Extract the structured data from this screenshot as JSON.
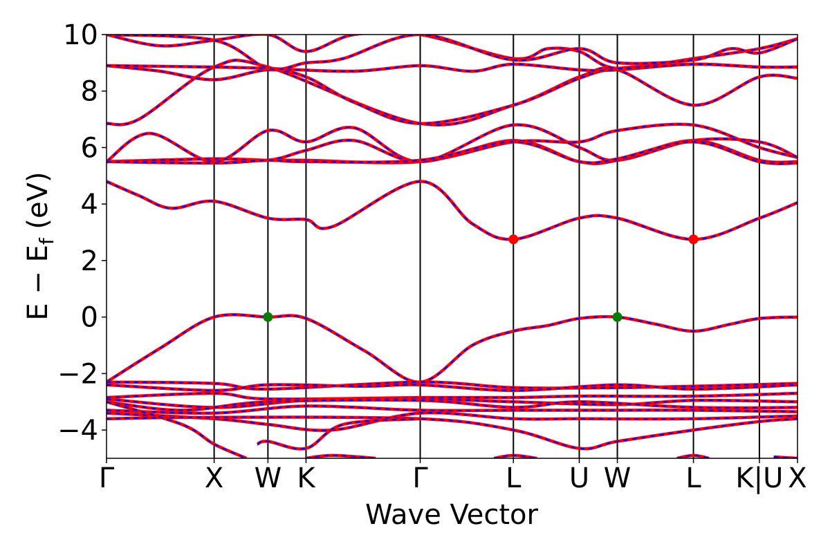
{
  "chart_data": {
    "type": "line",
    "title": "",
    "xlabel": "Wave Vector",
    "ylabel_main": "E − E",
    "ylabel_sub": "f",
    "ylabel_unit": " (eV)",
    "ylim": [
      -5,
      10
    ],
    "y_ticks": [
      {
        "value": 10,
        "label": "10"
      },
      {
        "value": 8,
        "label": "8"
      },
      {
        "value": 6,
        "label": "6"
      },
      {
        "value": 4,
        "label": "4"
      },
      {
        "value": 2,
        "label": "2"
      },
      {
        "value": 0,
        "label": "0"
      },
      {
        "value": -2,
        "label": "−2"
      },
      {
        "value": -4,
        "label": "−4"
      }
    ],
    "kpoints": [
      {
        "label": "Γ",
        "x": 0.0
      },
      {
        "label": "X",
        "x": 1.0
      },
      {
        "label": "W",
        "x": 1.5
      },
      {
        "label": "K",
        "x": 1.854
      },
      {
        "label": "Γ",
        "x": 2.915
      },
      {
        "label": "L",
        "x": 3.781
      },
      {
        "label": "U",
        "x": 4.393
      },
      {
        "label": "W",
        "x": 4.747
      },
      {
        "label": "L",
        "x": 5.454
      },
      {
        "label": "K|U",
        "x": 6.067
      },
      {
        "label": "X",
        "x": 6.421
      }
    ],
    "xlim": [
      0,
      6.421
    ],
    "colors": {
      "band_red": "#ff0000",
      "band_blue": "#0000ff",
      "vbm": "#007f00",
      "cbm": "#ff0000",
      "kline": "#000000"
    },
    "band_style": "red solid overlaid with blue dashed (spin up / spin down)",
    "markers": {
      "vbm": [
        {
          "x": 1.5,
          "y": 0.0
        },
        {
          "x": 4.747,
          "y": 0.0
        }
      ],
      "cbm": [
        {
          "x": 3.781,
          "y": 2.75
        },
        {
          "x": 5.454,
          "y": 2.75
        }
      ]
    },
    "series": [
      {
        "points": [
          [
            0.0,
            -2.3
          ],
          [
            0.5,
            -1.1
          ],
          [
            1.0,
            0.0
          ],
          [
            1.5,
            0.0
          ],
          [
            1.854,
            -0.05
          ],
          [
            2.4,
            -1.2
          ],
          [
            2.915,
            -2.3
          ],
          [
            3.4,
            -1.0
          ],
          [
            3.781,
            -0.5
          ],
          [
            4.1,
            -0.3
          ],
          [
            4.393,
            -0.05
          ],
          [
            4.747,
            0.0
          ],
          [
            5.1,
            -0.25
          ],
          [
            5.454,
            -0.5
          ],
          [
            5.8,
            -0.25
          ],
          [
            6.067,
            -0.05
          ],
          [
            6.421,
            0.0
          ]
        ]
      },
      {
        "points": [
          [
            0.0,
            4.8
          ],
          [
            0.3,
            4.3
          ],
          [
            0.6,
            3.85
          ],
          [
            1.0,
            4.1
          ],
          [
            1.5,
            3.5
          ],
          [
            1.854,
            3.45
          ],
          [
            2.1,
            3.2
          ],
          [
            2.915,
            4.8
          ],
          [
            3.4,
            3.3
          ],
          [
            3.781,
            2.75
          ],
          [
            4.393,
            3.5
          ],
          [
            4.747,
            3.5
          ],
          [
            5.454,
            2.75
          ],
          [
            6.067,
            3.5
          ],
          [
            6.421,
            4.05
          ]
        ]
      },
      {
        "points": [
          [
            0.0,
            5.5
          ],
          [
            1.0,
            5.6
          ],
          [
            1.5,
            5.55
          ],
          [
            1.854,
            5.55
          ],
          [
            2.915,
            5.5
          ],
          [
            3.781,
            6.2
          ],
          [
            4.393,
            6.2
          ],
          [
            4.747,
            6.6
          ],
          [
            5.454,
            6.8
          ],
          [
            6.067,
            6.0
          ],
          [
            6.421,
            5.65
          ]
        ]
      },
      {
        "points": [
          [
            0.0,
            5.5
          ],
          [
            0.4,
            6.5
          ],
          [
            1.0,
            5.5
          ],
          [
            1.5,
            6.6
          ],
          [
            1.854,
            6.2
          ],
          [
            2.3,
            6.7
          ],
          [
            2.915,
            5.5
          ],
          [
            3.781,
            6.8
          ],
          [
            4.393,
            6.0
          ],
          [
            4.747,
            5.55
          ],
          [
            5.454,
            6.25
          ],
          [
            6.067,
            6.2
          ],
          [
            6.421,
            5.65
          ]
        ]
      },
      {
        "points": [
          [
            0.0,
            5.5
          ],
          [
            1.0,
            5.6
          ],
          [
            1.5,
            5.55
          ],
          [
            1.854,
            5.9
          ],
          [
            2.3,
            6.25
          ],
          [
            2.915,
            5.5
          ],
          [
            3.781,
            6.25
          ],
          [
            4.393,
            5.5
          ],
          [
            4.747,
            5.55
          ],
          [
            5.454,
            6.25
          ],
          [
            6.067,
            5.55
          ],
          [
            6.421,
            5.5
          ]
        ]
      },
      {
        "points": [
          [
            0.0,
            5.5
          ],
          [
            1.0,
            5.45
          ],
          [
            1.5,
            5.55
          ],
          [
            1.854,
            5.5
          ],
          [
            2.915,
            5.55
          ],
          [
            3.781,
            6.2
          ],
          [
            4.393,
            5.5
          ],
          [
            4.747,
            5.6
          ],
          [
            5.454,
            6.2
          ],
          [
            6.067,
            5.5
          ],
          [
            6.421,
            5.45
          ]
        ]
      },
      {
        "points": [
          [
            0.0,
            6.85
          ],
          [
            0.3,
            7.0
          ],
          [
            1.0,
            8.85
          ],
          [
            1.5,
            8.85
          ],
          [
            2.915,
            6.85
          ],
          [
            3.781,
            7.5
          ],
          [
            4.393,
            8.5
          ],
          [
            4.747,
            8.75
          ],
          [
            5.454,
            7.5
          ],
          [
            6.067,
            8.5
          ],
          [
            6.421,
            8.45
          ]
        ]
      },
      {
        "points": [
          [
            0.0,
            8.9
          ],
          [
            0.5,
            8.7
          ],
          [
            1.0,
            8.4
          ],
          [
            1.5,
            8.75
          ],
          [
            1.854,
            8.5
          ],
          [
            2.3,
            7.6
          ],
          [
            2.915,
            6.85
          ],
          [
            3.781,
            7.5
          ],
          [
            4.393,
            8.45
          ],
          [
            4.747,
            8.8
          ],
          [
            5.454,
            8.95
          ],
          [
            6.067,
            8.85
          ],
          [
            6.421,
            8.85
          ]
        ]
      },
      {
        "points": [
          [
            0.0,
            8.9
          ],
          [
            1.0,
            8.85
          ],
          [
            1.5,
            8.8
          ],
          [
            2.3,
            8.7
          ],
          [
            2.915,
            8.9
          ],
          [
            3.4,
            8.7
          ],
          [
            3.781,
            8.95
          ],
          [
            4.393,
            8.75
          ],
          [
            4.747,
            8.75
          ],
          [
            5.454,
            8.95
          ],
          [
            6.067,
            8.85
          ],
          [
            6.421,
            8.85
          ]
        ]
      },
      {
        "points": [
          [
            0.0,
            10.0
          ],
          [
            0.5,
            9.6
          ],
          [
            1.0,
            9.8
          ],
          [
            1.5,
            10.0
          ],
          [
            1.854,
            9.4
          ],
          [
            2.3,
            10.0
          ],
          [
            2.915,
            10.0
          ],
          [
            3.781,
            9.15
          ],
          [
            4.1,
            9.5
          ],
          [
            4.393,
            9.4
          ],
          [
            4.747,
            8.8
          ],
          [
            5.454,
            9.15
          ],
          [
            6.067,
            9.5
          ],
          [
            6.421,
            9.85
          ]
        ]
      },
      {
        "points": [
          [
            0.0,
            10.0
          ],
          [
            1.0,
            9.8
          ],
          [
            1.5,
            8.8
          ],
          [
            1.854,
            9.0
          ],
          [
            2.2,
            9.15
          ],
          [
            2.915,
            10.0
          ],
          [
            3.781,
            9.1
          ],
          [
            4.393,
            9.5
          ],
          [
            4.747,
            9.0
          ],
          [
            5.454,
            9.1
          ],
          [
            5.8,
            9.5
          ],
          [
            6.067,
            9.35
          ],
          [
            6.421,
            9.85
          ]
        ]
      },
      {
        "points": [
          [
            0.0,
            -2.3
          ],
          [
            1.0,
            -2.35
          ],
          [
            1.5,
            -2.55
          ],
          [
            2.915,
            -2.3
          ],
          [
            3.781,
            -2.5
          ],
          [
            4.747,
            -2.5
          ],
          [
            5.454,
            -2.45
          ],
          [
            6.421,
            -2.35
          ]
        ]
      },
      {
        "points": [
          [
            0.0,
            -2.4
          ],
          [
            1.0,
            -2.6
          ],
          [
            1.5,
            -2.4
          ],
          [
            2.4,
            -2.45
          ],
          [
            2.915,
            -2.4
          ],
          [
            3.781,
            -2.6
          ],
          [
            4.747,
            -2.4
          ],
          [
            5.454,
            -2.55
          ],
          [
            6.421,
            -2.4
          ]
        ]
      },
      {
        "points": [
          [
            0.0,
            -2.85
          ],
          [
            1.0,
            -2.7
          ],
          [
            1.5,
            -2.9
          ],
          [
            2.915,
            -2.85
          ],
          [
            3.781,
            -2.85
          ],
          [
            4.393,
            -2.8
          ],
          [
            5.454,
            -2.8
          ],
          [
            6.421,
            -2.7
          ]
        ]
      },
      {
        "points": [
          [
            0.0,
            -2.9
          ],
          [
            1.0,
            -3.2
          ],
          [
            1.854,
            -2.95
          ],
          [
            2.915,
            -2.9
          ],
          [
            3.781,
            -3.0
          ],
          [
            4.747,
            -3.1
          ],
          [
            5.454,
            -2.95
          ],
          [
            6.421,
            -3.0
          ]
        ]
      },
      {
        "points": [
          [
            0.0,
            -3.0
          ],
          [
            0.7,
            -3.3
          ],
          [
            1.5,
            -3.0
          ],
          [
            2.915,
            -2.95
          ],
          [
            3.781,
            -3.2
          ],
          [
            4.393,
            -3.0
          ],
          [
            5.454,
            -3.2
          ],
          [
            6.421,
            -3.2
          ]
        ]
      },
      {
        "points": [
          [
            0.0,
            -3.3
          ],
          [
            1.0,
            -3.4
          ],
          [
            1.854,
            -3.15
          ],
          [
            2.915,
            -3.3
          ],
          [
            3.781,
            -3.3
          ],
          [
            4.747,
            -3.3
          ],
          [
            5.454,
            -3.3
          ],
          [
            6.421,
            -3.35
          ]
        ]
      },
      {
        "points": [
          [
            0.0,
            -3.4
          ],
          [
            1.0,
            -3.6
          ],
          [
            1.5,
            -3.8
          ],
          [
            2.1,
            -4.0
          ],
          [
            2.915,
            -3.4
          ],
          [
            3.781,
            -3.6
          ],
          [
            4.393,
            -3.6
          ],
          [
            5.454,
            -3.6
          ],
          [
            6.421,
            -3.5
          ]
        ]
      },
      {
        "points": [
          [
            0.0,
            -3.6
          ],
          [
            1.0,
            -3.55
          ],
          [
            2.915,
            -3.6
          ],
          [
            3.781,
            -4.0
          ],
          [
            4.393,
            -4.65
          ],
          [
            4.747,
            -4.4
          ],
          [
            5.454,
            -4.0
          ],
          [
            6.067,
            -3.7
          ],
          [
            6.421,
            -3.6
          ]
        ]
      },
      {
        "points": [
          [
            0.0,
            -3.0
          ],
          [
            0.7,
            -3.8
          ],
          [
            1.0,
            -4.5
          ],
          [
            1.3,
            -5.0
          ]
        ]
      },
      {
        "points": [
          [
            1.4,
            -4.5
          ],
          [
            1.5,
            -4.4
          ],
          [
            1.854,
            -4.65
          ],
          [
            2.2,
            -3.8
          ],
          [
            2.915,
            -3.6
          ]
        ]
      },
      {
        "points": [
          [
            1.854,
            -5.0
          ],
          [
            2.1,
            -4.9
          ],
          [
            2.5,
            -5.0
          ]
        ]
      },
      {
        "points": [
          [
            3.6,
            -5.0
          ],
          [
            3.781,
            -4.9
          ],
          [
            4.0,
            -5.0
          ]
        ]
      },
      {
        "points": [
          [
            5.3,
            -5.0
          ],
          [
            5.454,
            -4.9
          ],
          [
            5.6,
            -5.0
          ]
        ]
      },
      {
        "points": [
          [
            6.2,
            -4.95
          ],
          [
            6.421,
            -5.0
          ]
        ]
      }
    ]
  }
}
